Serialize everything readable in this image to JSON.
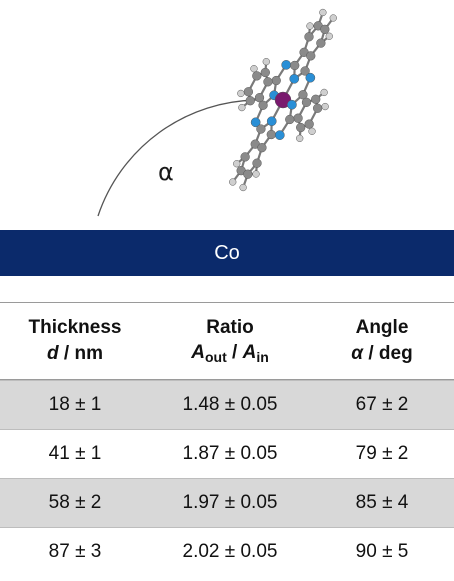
{
  "figure": {
    "angle_symbol": "α",
    "substrate_label": "Co"
  },
  "table": {
    "headers": [
      {
        "line1": "Thickness",
        "line2_var": "d",
        "line2_rest": " / nm"
      },
      {
        "line1": "Ratio",
        "line2_a": "A",
        "line2_sub1": "out",
        "line2_mid": " / ",
        "line2_b": "A",
        "line2_sub2": "in"
      },
      {
        "line1": "Angle",
        "line2_var": "α",
        "line2_rest": " / deg"
      }
    ],
    "rows": [
      {
        "thickness": "18 ± 1",
        "ratio": "1.48 ± 0.05",
        "angle": "67 ± 2"
      },
      {
        "thickness": "41 ± 1",
        "ratio": "1.87 ± 0.05",
        "angle": "79 ± 2"
      },
      {
        "thickness": "58 ± 2",
        "ratio": "1.97 ± 0.05",
        "angle": "85 ± 4"
      },
      {
        "thickness": "87 ± 3",
        "ratio": "2.02 ± 0.05",
        "angle": "90 ± 5"
      }
    ]
  },
  "colors": {
    "substrate": "#0b2a6b",
    "carbon": "#8a8a8a",
    "hydrogen": "#cfcfcf",
    "nitrogen": "#2a8fd6",
    "cobalt": "#7a1a6e",
    "row_shade": "#d8d8d8"
  }
}
